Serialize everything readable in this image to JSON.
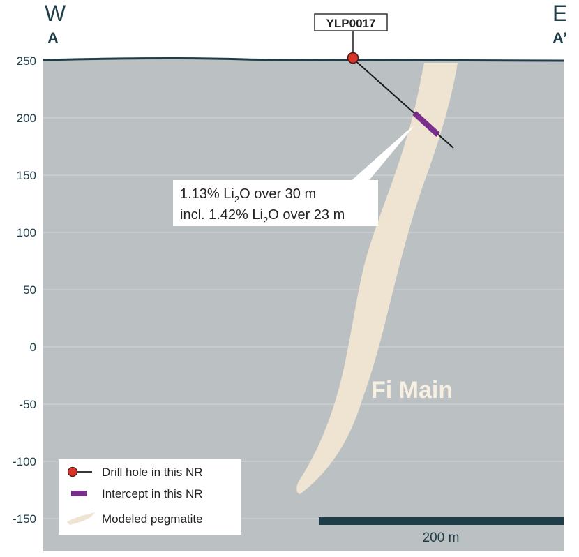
{
  "section": {
    "west_compass": "W",
    "east_compass": "E",
    "west_label": "A",
    "east_label": "A’"
  },
  "elevation_axis": {
    "ticks": [
      250,
      200,
      150,
      100,
      50,
      0,
      -50,
      -100,
      -150
    ]
  },
  "drill_hole": {
    "id": "YLP0017",
    "collar_elevation": 250
  },
  "intercept_callout": {
    "line1": {
      "pre": "1.13% Li",
      "sub": "2",
      "post": "O over 30 m"
    },
    "line2": {
      "pre": "incl. 1.42% Li",
      "sub": "2",
      "post": "O over 23 m"
    }
  },
  "pegmatite_label": "Fi Main",
  "legend": {
    "items": [
      {
        "label": "Drill hole in this NR"
      },
      {
        "label": "Intercept in this NR"
      },
      {
        "label": "Modeled pegmatite"
      }
    ]
  },
  "scale_bar": {
    "label": "200 m"
  },
  "colors": {
    "ground": "#bbc0c3",
    "pegmatite": "#efe4d2",
    "topography": "#1f3d49",
    "drill_collar": "#d8342a",
    "intercept": "#7a2f8d",
    "axis_text": "#1f3d49"
  }
}
